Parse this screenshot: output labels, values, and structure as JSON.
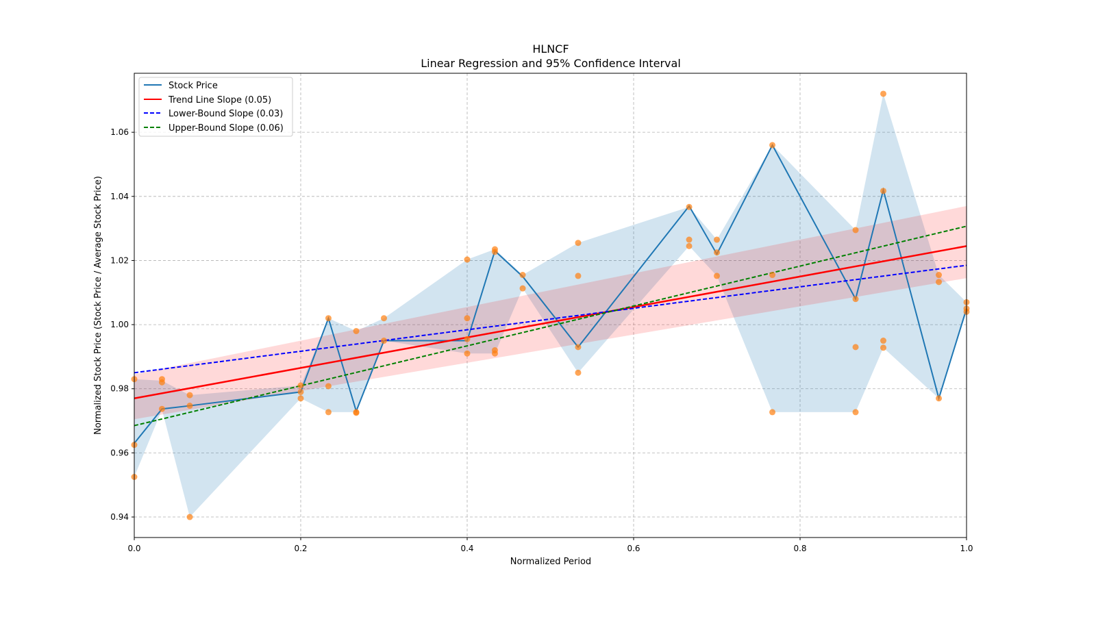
{
  "chart_data": {
    "type": "line",
    "title": "HLNCF",
    "subtitle": "Linear Regression and 95% Confidence Interval",
    "xlabel": "Normalized Period",
    "ylabel": "Normalized Stock Price (Stock Price / Average Stock Price)",
    "xlim": [
      0,
      1
    ],
    "ylim": [
      0.9336,
      1.0784
    ],
    "xticks": [
      "0.0",
      "0.2",
      "0.4",
      "0.6",
      "0.8",
      "1.0"
    ],
    "xtick_values": [
      0,
      0.2,
      0.4,
      0.6,
      0.8,
      1.0
    ],
    "yticks": [
      "0.94",
      "0.96",
      "0.98",
      "1.00",
      "1.02",
      "1.04",
      "1.06"
    ],
    "ytick_values": [
      0.94,
      0.96,
      0.98,
      1.0,
      1.02,
      1.04,
      1.06
    ],
    "grid": true,
    "legend_position": "top-left",
    "legend": [
      "Stock Price",
      "Trend Line Slope (0.05)",
      "Lower-Bound Slope (0.03)",
      "Upper-Bound Slope (0.06)"
    ],
    "colors": {
      "price": "#1f77b4",
      "band": "#1f77b4",
      "scatter": "#ff7f0e",
      "trend": "#ff0000",
      "lower": "#0000ff",
      "upper": "#008000"
    },
    "x": [
      0,
      0.0333,
      0.0667,
      0.2,
      0.2333,
      0.2667,
      0.3,
      0.4,
      0.4333,
      0.4667,
      0.5333,
      0.6667,
      0.7,
      0.7667,
      0.8667,
      0.9,
      0.9667,
      1.0
    ],
    "price": [
      0.963,
      0.9737,
      0.9747,
      0.979,
      1.002,
      0.973,
      0.995,
      0.995,
      1.023,
      1.015,
      0.993,
      1.037,
      1.022,
      1.056,
      1.008,
      1.042,
      0.977,
      1.005
    ],
    "band_upper": [
      0.983,
      0.9825,
      0.978,
      0.981,
      1.002,
      0.998,
      1.002,
      1.0203,
      1.0235,
      1.0155,
      1.0255,
      1.0367,
      1.0265,
      1.056,
      1.0295,
      1.072,
      1.0155,
      1.007
    ],
    "band_lower": [
      0.9525,
      0.9735,
      0.94,
      0.977,
      0.9727,
      0.9727,
      0.995,
      0.991,
      0.991,
      1.0113,
      0.985,
      1.0245,
      1.0152,
      0.9727,
      0.9727,
      0.9928,
      0.977,
      1.004
    ],
    "scatter": [
      [
        0,
        [
          0.983,
          0.9625,
          0.9525
        ]
      ],
      [
        0.0333,
        [
          0.983,
          0.982,
          0.9737
        ]
      ],
      [
        0.0667,
        [
          0.978,
          0.9747,
          0.94
        ]
      ],
      [
        0.2,
        [
          0.981,
          0.979,
          0.977
        ]
      ],
      [
        0.2333,
        [
          1.002,
          0.9808,
          0.9727
        ]
      ],
      [
        0.2667,
        [
          0.998,
          0.9727,
          0.9725
        ]
      ],
      [
        0.3,
        [
          1.002,
          0.995
        ]
      ],
      [
        0.4,
        [
          1.0203,
          1.002,
          0.9955,
          0.991
        ]
      ],
      [
        0.4333,
        [
          1.0235,
          1.0227,
          0.992,
          0.991
        ]
      ],
      [
        0.4667,
        [
          1.0155,
          1.0113
        ]
      ],
      [
        0.5333,
        [
          1.0255,
          1.0152,
          0.993,
          0.985
        ]
      ],
      [
        0.6667,
        [
          1.0367,
          1.0265,
          1.0245
        ]
      ],
      [
        0.7,
        [
          1.0265,
          1.0225,
          1.0152
        ]
      ],
      [
        0.7667,
        [
          1.056,
          1.0155,
          0.9727
        ]
      ],
      [
        0.8667,
        [
          1.0295,
          1.008,
          0.993,
          0.9727
        ]
      ],
      [
        0.9,
        [
          1.072,
          1.0417,
          0.995,
          0.9928
        ]
      ],
      [
        0.9667,
        [
          1.0155,
          1.0133,
          0.977
        ]
      ],
      [
        1.0,
        [
          1.007,
          1.005,
          1.004
        ]
      ]
    ],
    "trend": [
      0.977,
      1.0245
    ],
    "trend_ci_upper": [
      0.9845,
      1.037
    ],
    "trend_ci_lower": [
      0.9705,
      1.0145
    ],
    "lower_bound_line": [
      0.985,
      1.0185
    ],
    "upper_bound_line": [
      0.9685,
      1.0307
    ]
  }
}
